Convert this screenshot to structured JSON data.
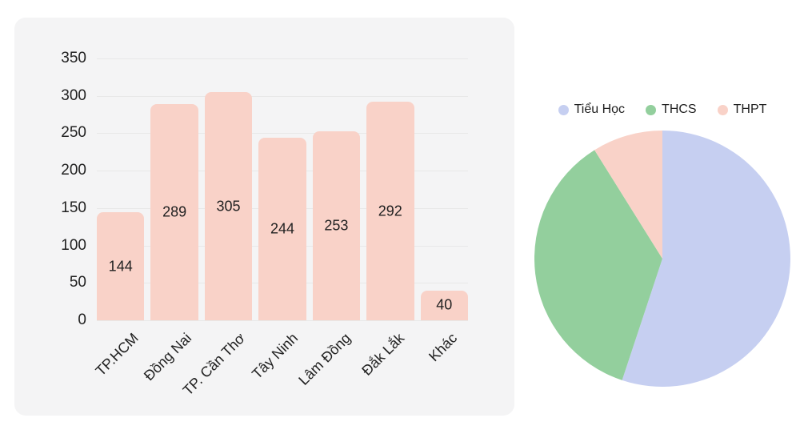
{
  "colors": {
    "page_bg": "#ffffff",
    "panel_bg": "#f4f4f5",
    "gridline": "#e8e8e8",
    "text": "#212121",
    "bar_fill": "#f9d2c8",
    "pie_tieu_hoc": "#c6cff1",
    "pie_thcs": "#93cf9d",
    "pie_thpt": "#f9d2c8"
  },
  "chart_data": [
    {
      "type": "bar",
      "title": "",
      "xlabel": "",
      "ylabel": "",
      "categories": [
        "TP.HCM",
        "Đồng Nai",
        "TP. Cần Thơ",
        "Tây Ninh",
        "Lâm Đồng",
        "Đắk Lắk",
        "Khác"
      ],
      "values": [
        144,
        289,
        305,
        244,
        253,
        292,
        40
      ],
      "ylim": [
        0,
        350
      ],
      "ytick_values": [
        350,
        300,
        250,
        200,
        150,
        100,
        50,
        0
      ],
      "ytick_labels": [
        "350",
        "300",
        "250",
        "200",
        "150",
        "100",
        "50",
        "0"
      ],
      "grid": true,
      "bar_color": "#f9d2c8",
      "value_label_position": "inside-center",
      "xtick_rotation_deg": -45
    },
    {
      "type": "pie",
      "title": "",
      "legend_position": "top",
      "start_angle_deg": 0,
      "direction": "clockwise",
      "series": [
        {
          "label": "Tiểu Học",
          "percent": 55.1,
          "color": "#c6cff1"
        },
        {
          "label": "THCS",
          "percent": 36.0,
          "color": "#93cf9d"
        },
        {
          "label": "THPT",
          "percent": 8.9,
          "color": "#f9d2c8"
        }
      ]
    }
  ]
}
